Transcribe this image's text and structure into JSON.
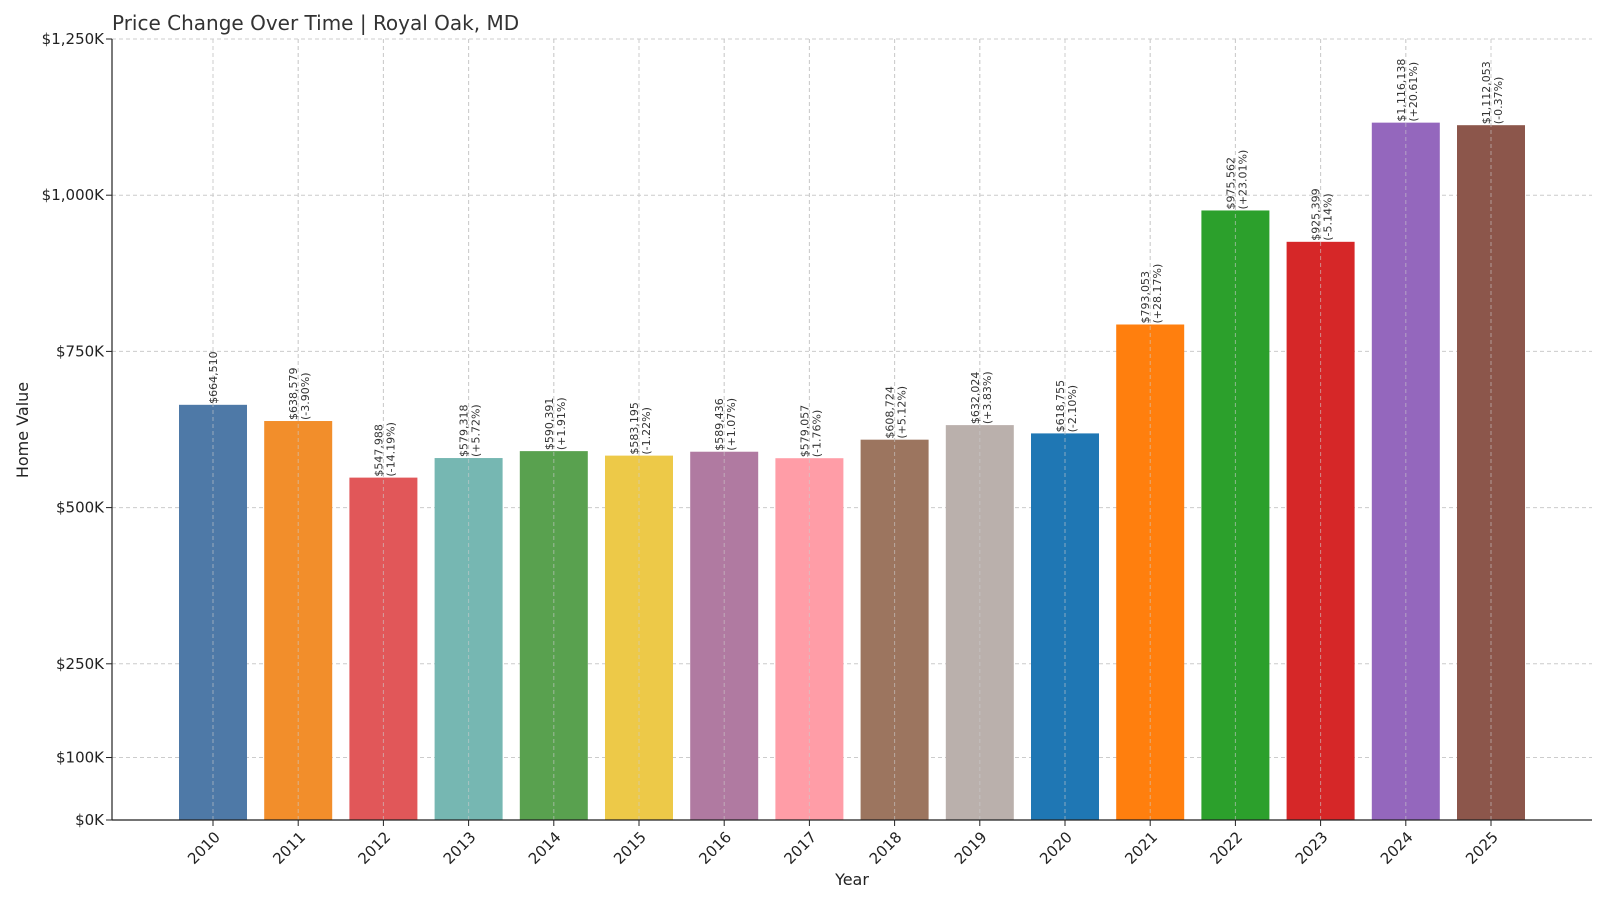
{
  "chart_data": {
    "type": "bar",
    "title": "Price Change Over Time | Royal Oak, MD",
    "xlabel": "Year",
    "ylabel": "Home Value",
    "ylim": [
      0,
      1250000
    ],
    "y_ticks": [
      0,
      100000,
      250000,
      500000,
      750000,
      1000000,
      1250000
    ],
    "y_tick_labels": [
      "$0K",
      "$100K",
      "$250K",
      "$500K",
      "$750K",
      "$1,000K",
      "$1,250K"
    ],
    "grid": true,
    "categories": [
      "2010",
      "2011",
      "2012",
      "2013",
      "2014",
      "2015",
      "2016",
      "2017",
      "2018",
      "2019",
      "2020",
      "2021",
      "2022",
      "2023",
      "2024",
      "2025"
    ],
    "values": [
      664510,
      638579,
      547988,
      579318,
      590391,
      583195,
      589436,
      579057,
      608724,
      632024,
      618755,
      793053,
      975562,
      925399,
      1116138,
      1112053
    ],
    "value_labels": [
      "$664,510",
      "$638,579",
      "$547,988",
      "$579,318",
      "$590,391",
      "$583,195",
      "$589,436",
      "$579,057",
      "$608,724",
      "$632,024",
      "$618,755",
      "$793,053",
      "$975,562",
      "$925,399",
      "$1,116,138",
      "$1,112,053"
    ],
    "change_labels": [
      "",
      "(-3.90%)",
      "(-14.19%)",
      "(+5.72%)",
      "(+1.91%)",
      "(-1.22%)",
      "(+1.07%)",
      "(-1.76%)",
      "(+5.12%)",
      "(+3.83%)",
      "(-2.10%)",
      "(+28.17%)",
      "(+23.01%)",
      "(-5.14%)",
      "(+20.61%)",
      "(-0.37%)"
    ],
    "colors": [
      "#4e79a7",
      "#f28e2b",
      "#e15759",
      "#76b7b2",
      "#59a14f",
      "#edc948",
      "#b07aa1",
      "#ff9da7",
      "#9c755f",
      "#bab0ac",
      "#1f77b4",
      "#ff7f0e",
      "#2ca02c",
      "#d62728",
      "#9467bd",
      "#8c564b"
    ]
  }
}
